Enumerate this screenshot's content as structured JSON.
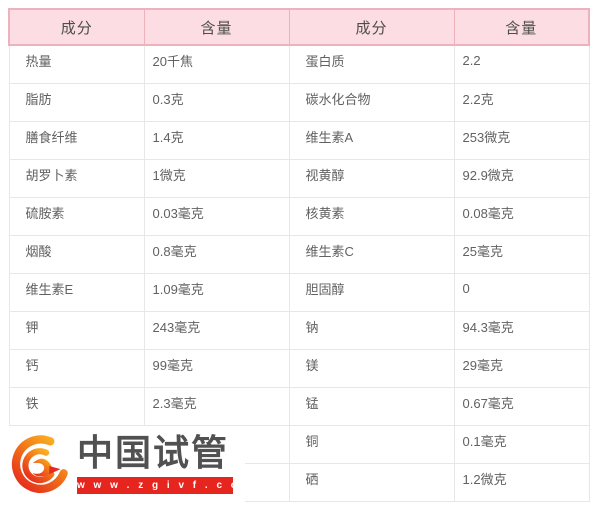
{
  "table": {
    "headers": [
      "成分",
      "含量",
      "成分",
      "含量"
    ],
    "rows": [
      {
        "c1": "热量",
        "c2": "20千焦",
        "c3": "蛋白质",
        "c4": "2.2"
      },
      {
        "c1": "脂肪",
        "c2": "0.3克",
        "c3": "碳水化合物",
        "c4": "2.2克"
      },
      {
        "c1": "膳食纤维",
        "c2": "1.4克",
        "c3": "维生素A",
        "c4": "253微克"
      },
      {
        "c1": "胡罗卜素",
        "c2": "1微克",
        "c3": "视黄醇",
        "c4": "92.9微克"
      },
      {
        "c1": "硫胺素",
        "c2": "0.03毫克",
        "c3": "核黄素",
        "c4": "0.08毫克"
      },
      {
        "c1": "烟酸",
        "c2": "0.8毫克",
        "c3": "维生素C",
        "c4": "25毫克"
      },
      {
        "c1": "维生素E",
        "c2": "1.09毫克",
        "c3": "胆固醇",
        "c4": "0"
      },
      {
        "c1": "钾",
        "c2": "243毫克",
        "c3": "钠",
        "c4": "94.3毫克"
      },
      {
        "c1": "钙",
        "c2": "99毫克",
        "c3": "镁",
        "c4": "29毫克"
      },
      {
        "c1": "铁",
        "c2": "2.3毫克",
        "c3": "锰",
        "c4": "0.67毫克"
      },
      {
        "c1": "",
        "c2": "",
        "c3": "铜",
        "c4": "0.1毫克"
      },
      {
        "c1": "",
        "c2": "",
        "c3": "硒",
        "c4": "1.2微克"
      }
    ]
  },
  "logo": {
    "brand": "中国试管",
    "url": "w w w . z g i v f . c o m"
  },
  "colors": {
    "header_bg": "#fbdde3",
    "header_border": "#eeb2bd",
    "body_border": "#e7e7e7",
    "text": "#616161",
    "logo_red": "#e6251f",
    "logo_orange": "#f7a21f"
  }
}
